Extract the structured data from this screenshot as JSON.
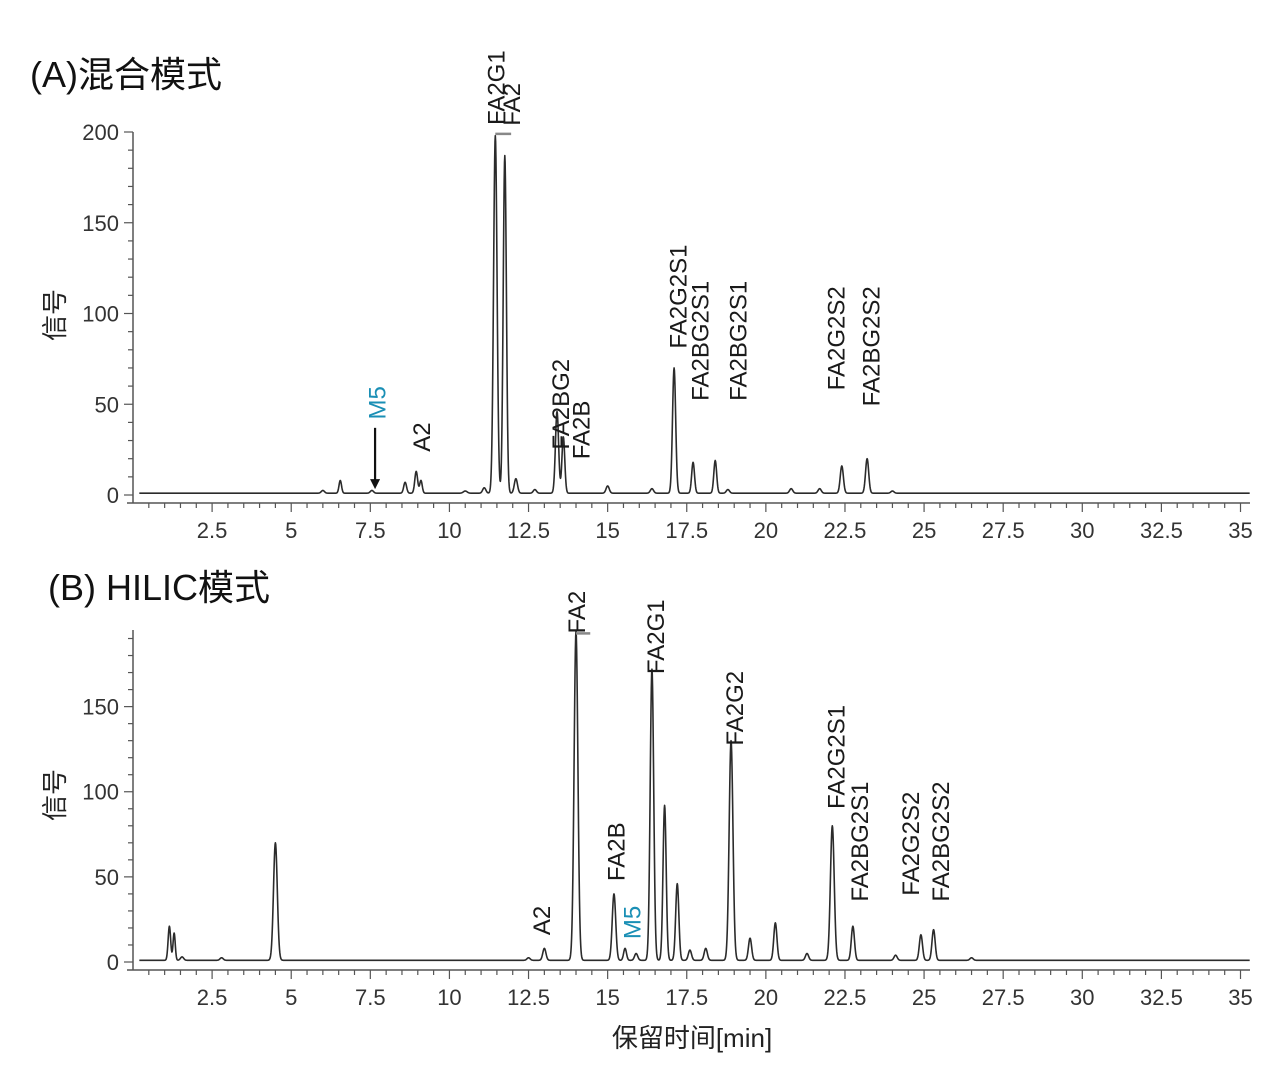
{
  "x_axis_label": "保留时间[min]",
  "highlight_color": "#1a8fb5",
  "chart_data": [
    {
      "type": "line",
      "title": "(A)混合模式",
      "ylabel": "信号",
      "xlabel": "",
      "xlim": [
        0.0,
        35.3
      ],
      "ylim": [
        0,
        200
      ],
      "x_ticks": [
        2.5,
        5,
        7.5,
        10,
        12.5,
        15,
        17.5,
        20,
        22.5,
        25,
        27.5,
        30,
        32.5,
        35
      ],
      "x_tick_labels": [
        "2.5",
        "5",
        "7.5",
        "10",
        "12.5",
        "15",
        "17.5",
        "20",
        "22.5",
        "25",
        "27.5",
        "30",
        "32.5",
        "35"
      ],
      "y_ticks": [
        0,
        50,
        100,
        150,
        200
      ],
      "y_tick_labels": [
        "0",
        "50",
        "100",
        "150",
        "200"
      ],
      "baseline": 1,
      "peaks": [
        {
          "x": 6.0,
          "y": 1.5,
          "w": 0.05
        },
        {
          "x": 6.55,
          "y": 7,
          "w": 0.04
        },
        {
          "x": 7.55,
          "y": 1.5,
          "w": 0.05
        },
        {
          "x": 8.6,
          "y": 6,
          "w": 0.045
        },
        {
          "x": 8.95,
          "y": 12,
          "w": 0.045
        },
        {
          "x": 9.1,
          "y": 7,
          "w": 0.04
        },
        {
          "x": 10.5,
          "y": 1.2,
          "w": 0.06
        },
        {
          "x": 11.1,
          "y": 3,
          "w": 0.05
        },
        {
          "x": 11.45,
          "y": 197,
          "w": 0.055
        },
        {
          "x": 11.75,
          "y": 186,
          "w": 0.05
        },
        {
          "x": 12.1,
          "y": 8,
          "w": 0.05
        },
        {
          "x": 12.7,
          "y": 2,
          "w": 0.05
        },
        {
          "x": 13.4,
          "y": 45,
          "w": 0.05
        },
        {
          "x": 13.6,
          "y": 31,
          "w": 0.045
        },
        {
          "x": 15.0,
          "y": 4,
          "w": 0.05
        },
        {
          "x": 16.4,
          "y": 2.5,
          "w": 0.05
        },
        {
          "x": 17.1,
          "y": 69,
          "w": 0.05
        },
        {
          "x": 17.7,
          "y": 17,
          "w": 0.045
        },
        {
          "x": 18.4,
          "y": 18,
          "w": 0.045
        },
        {
          "x": 18.8,
          "y": 2,
          "w": 0.05
        },
        {
          "x": 20.8,
          "y": 2.5,
          "w": 0.05
        },
        {
          "x": 21.7,
          "y": 2.5,
          "w": 0.05
        },
        {
          "x": 22.4,
          "y": 15,
          "w": 0.05
        },
        {
          "x": 23.2,
          "y": 19,
          "w": 0.05
        },
        {
          "x": 24.0,
          "y": 1.2,
          "w": 0.05
        }
      ],
      "annotations": [
        {
          "text": "FA2G1",
          "x": 11.45,
          "y_top": 245,
          "rotated": true
        },
        {
          "text": "FA2",
          "x": 11.95,
          "y_top": 227,
          "rotated": true
        },
        {
          "text": "FA2BG2",
          "x": 13.5,
          "y_top": 75,
          "rotated": true
        },
        {
          "text": "FA2B",
          "x": 14.15,
          "y_top": 52,
          "rotated": true
        },
        {
          "text": "FA2G2S1",
          "x": 17.2,
          "y_top": 138,
          "rotated": true
        },
        {
          "text": "FA2BG2S1",
          "x": 17.9,
          "y_top": 118,
          "rotated": true
        },
        {
          "text": "FA2BG2S1",
          "x": 19.1,
          "y_top": 118,
          "rotated": true
        },
        {
          "text": "FA2G2S2",
          "x": 22.2,
          "y_top": 115,
          "rotated": true
        },
        {
          "text": "FA2BG2S2",
          "x": 23.3,
          "y_top": 115,
          "rotated": true
        },
        {
          "text": "M5",
          "x": 7.7,
          "y_top": 60,
          "rotated": true,
          "highlight": true
        },
        {
          "text": "A2",
          "x": 9.1,
          "y_top": 40,
          "rotated": true
        }
      ],
      "arrow": {
        "x": 7.65,
        "y_from": 37,
        "y_to": 6
      },
      "clip_marker": {
        "x1": 11.45,
        "x2": 11.95,
        "y": 199
      }
    },
    {
      "type": "line",
      "title": "(B) HILIC模式",
      "ylabel": "信号",
      "xlabel": "保留时间[min]",
      "xlim": [
        0.0,
        35.3
      ],
      "ylim": [
        0,
        195
      ],
      "x_ticks": [
        2.5,
        5,
        7.5,
        10,
        12.5,
        15,
        17.5,
        20,
        22.5,
        25,
        27.5,
        30,
        32.5,
        35
      ],
      "x_tick_labels": [
        "2.5",
        "5",
        "7.5",
        "10",
        "12.5",
        "15",
        "17.5",
        "20",
        "22.5",
        "25",
        "27.5",
        "30",
        "32.5",
        "35"
      ],
      "y_ticks": [
        0,
        50,
        100,
        150
      ],
      "y_tick_labels": [
        "0",
        "50",
        "100",
        "150"
      ],
      "baseline": 1,
      "peaks": [
        {
          "x": 1.15,
          "y": 20,
          "w": 0.04
        },
        {
          "x": 1.3,
          "y": 16,
          "w": 0.035
        },
        {
          "x": 1.55,
          "y": 2,
          "w": 0.05
        },
        {
          "x": 2.8,
          "y": 1.5,
          "w": 0.05
        },
        {
          "x": 4.5,
          "y": 69,
          "w": 0.06
        },
        {
          "x": 12.5,
          "y": 1.5,
          "w": 0.05
        },
        {
          "x": 13.0,
          "y": 7,
          "w": 0.05
        },
        {
          "x": 14.0,
          "y": 193,
          "w": 0.06
        },
        {
          "x": 15.2,
          "y": 39,
          "w": 0.055
        },
        {
          "x": 15.55,
          "y": 7,
          "w": 0.045
        },
        {
          "x": 15.9,
          "y": 4,
          "w": 0.05
        },
        {
          "x": 16.4,
          "y": 171,
          "w": 0.055
        },
        {
          "x": 16.8,
          "y": 91,
          "w": 0.05
        },
        {
          "x": 17.2,
          "y": 45,
          "w": 0.05
        },
        {
          "x": 17.6,
          "y": 6,
          "w": 0.05
        },
        {
          "x": 18.1,
          "y": 7,
          "w": 0.05
        },
        {
          "x": 18.9,
          "y": 129,
          "w": 0.06
        },
        {
          "x": 19.5,
          "y": 13,
          "w": 0.05
        },
        {
          "x": 20.3,
          "y": 22,
          "w": 0.05
        },
        {
          "x": 21.3,
          "y": 4,
          "w": 0.05
        },
        {
          "x": 22.1,
          "y": 79,
          "w": 0.06
        },
        {
          "x": 22.75,
          "y": 20,
          "w": 0.05
        },
        {
          "x": 24.1,
          "y": 3,
          "w": 0.05
        },
        {
          "x": 24.9,
          "y": 15,
          "w": 0.05
        },
        {
          "x": 25.3,
          "y": 18,
          "w": 0.05
        },
        {
          "x": 26.5,
          "y": 1.5,
          "w": 0.05
        }
      ],
      "annotations": [
        {
          "text": "FA2",
          "x": 14.0,
          "y_top": 218,
          "rotated": true
        },
        {
          "text": "FA2G1",
          "x": 16.5,
          "y_top": 213,
          "rotated": true
        },
        {
          "text": "FA2G2",
          "x": 19.0,
          "y_top": 171,
          "rotated": true
        },
        {
          "text": "FA2B",
          "x": 15.25,
          "y_top": 82,
          "rotated": true
        },
        {
          "text": "M5",
          "x": 15.75,
          "y_top": 33,
          "rotated": true,
          "highlight": true
        },
        {
          "text": "A2",
          "x": 12.9,
          "y_top": 33,
          "rotated": true
        },
        {
          "text": "FA2G2S1",
          "x": 22.2,
          "y_top": 151,
          "rotated": true
        },
        {
          "text": "FA2BG2S1",
          "x": 22.95,
          "y_top": 106,
          "rotated": true
        },
        {
          "text": "FA2G2S2",
          "x": 24.55,
          "y_top": 100,
          "rotated": true
        },
        {
          "text": "FA2BG2S2",
          "x": 25.5,
          "y_top": 106,
          "rotated": true
        }
      ],
      "clip_marker": {
        "x1": 14.0,
        "x2": 14.45,
        "y": 193
      }
    }
  ]
}
